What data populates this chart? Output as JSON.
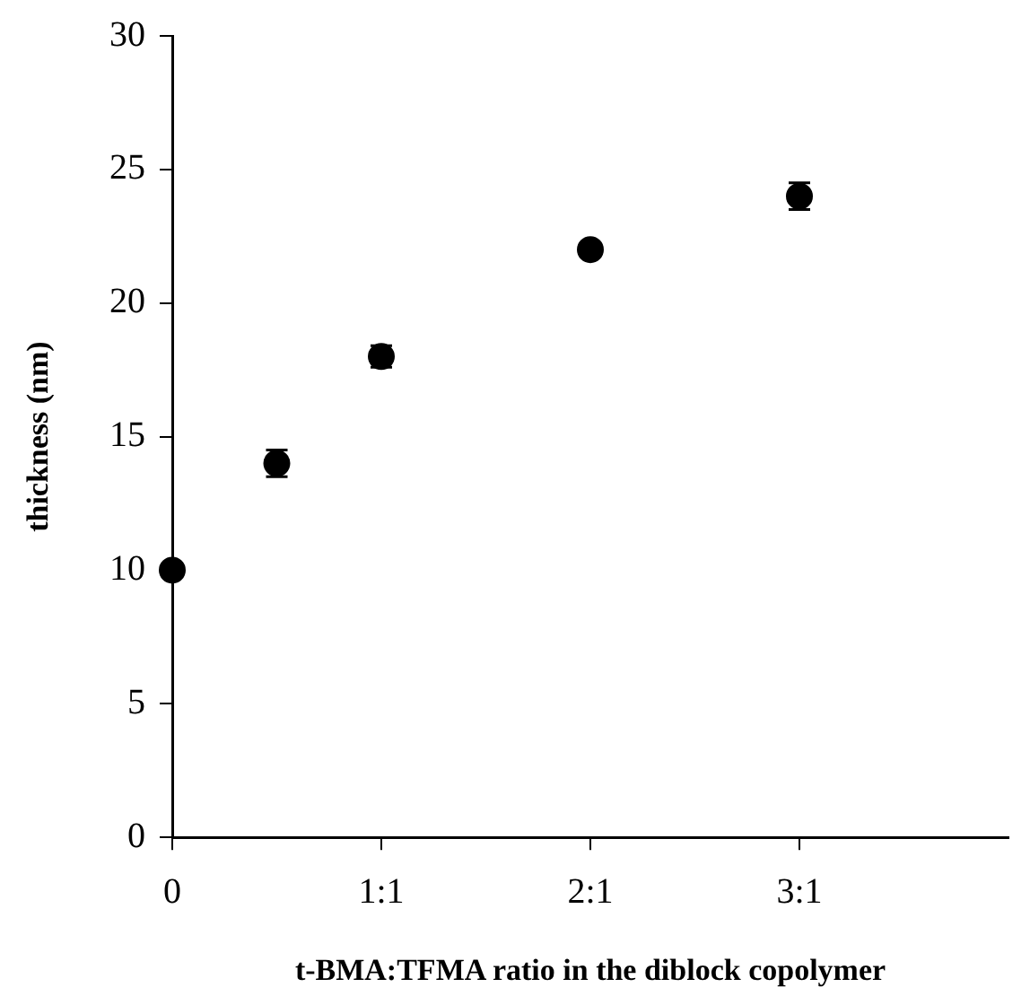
{
  "chart_data": {
    "type": "scatter",
    "xlabel": "t-BMA:TFMA ratio in the diblock copolymer",
    "ylabel": "thickness (nm)",
    "categories": [
      "0",
      null,
      "1:1",
      null,
      "2:1",
      null,
      "3:1",
      null,
      null
    ],
    "series": [
      {
        "color": "#000000",
        "values": [
          10,
          14,
          18,
          null,
          22,
          null,
          24,
          null,
          null
        ],
        "errors": [
          null,
          0.5,
          0.4,
          null,
          0.2,
          null,
          0.5,
          null,
          null
        ]
      }
    ],
    "ylim": [
      0,
      30
    ],
    "yticks": [
      0,
      5,
      10,
      15,
      20,
      25,
      30
    ],
    "marker": "circle",
    "grid": false,
    "legend": false
  }
}
